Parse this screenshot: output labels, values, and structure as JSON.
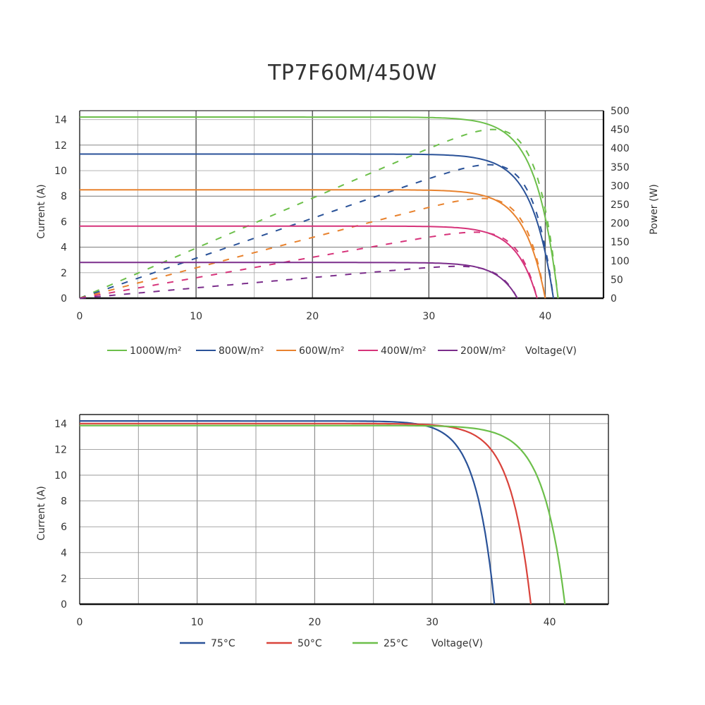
{
  "title": "TP7F60M/450W",
  "chart_data": [
    {
      "type": "line",
      "title": "TP7F60M/450W",
      "xlabel": "Voltage(V)",
      "ylabel": "Current (A)",
      "y2label": "Power (W)",
      "xlim": [
        0,
        45
      ],
      "ylim": [
        0,
        14.7
      ],
      "y2lim": [
        0,
        500
      ],
      "xticks": [
        0,
        10,
        20,
        30,
        40
      ],
      "yticks": [
        0,
        2,
        4,
        6,
        8,
        10,
        12,
        14
      ],
      "y2ticks": [
        0,
        50,
        100,
        150,
        200,
        250,
        300,
        350,
        400,
        450,
        500
      ],
      "series": [
        {
          "name": "1000W/m²",
          "color": "#6cbf4a",
          "isc": 14.2,
          "voc": 41.1,
          "vmp": 34.5,
          "pmax": 450
        },
        {
          "name": "800W/m²",
          "color": "#2a5298",
          "isc": 11.3,
          "voc": 40.7,
          "vmp": 34.3,
          "pmax": 356
        },
        {
          "name": "600W/m²",
          "color": "#e8822e",
          "isc": 8.5,
          "voc": 40.0,
          "vmp": 34.0,
          "pmax": 266
        },
        {
          "name": "400W/m²",
          "color": "#d6337a",
          "isc": 5.65,
          "voc": 39.3,
          "vmp": 33.6,
          "pmax": 176
        },
        {
          "name": "200W/m²",
          "color": "#7b2d8b",
          "isc": 2.8,
          "voc": 37.6,
          "vmp": 32.5,
          "pmax": 85
        }
      ]
    },
    {
      "type": "line",
      "xlabel": "Voltage(V)",
      "ylabel": "Current (A)",
      "xlim": [
        0,
        45
      ],
      "ylim": [
        0,
        14.7
      ],
      "xticks": [
        0,
        10,
        20,
        30,
        40
      ],
      "yticks": [
        0,
        2,
        4,
        6,
        8,
        10,
        12,
        14
      ],
      "series": [
        {
          "name": "75°C",
          "color": "#2a5298",
          "isc": 14.2,
          "voc": 35.3
        },
        {
          "name": "50°C",
          "color": "#d9433b",
          "isc": 14.0,
          "voc": 38.4
        },
        {
          "name": "25°C",
          "color": "#6cbf4a",
          "isc": 13.85,
          "voc": 41.3
        }
      ]
    }
  ]
}
